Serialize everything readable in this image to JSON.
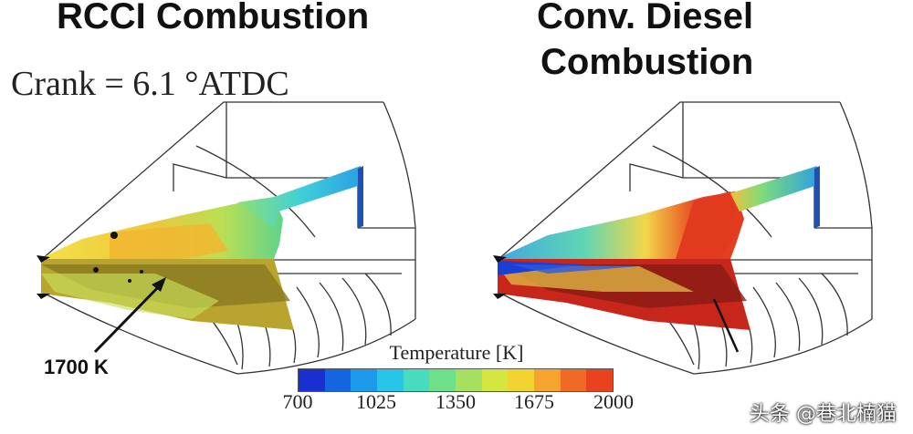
{
  "titles": {
    "left": "RCCI Combustion",
    "right_line1": "Conv. Diesel",
    "right_line2": "Combustion"
  },
  "crank_label": "Crank = 6.1 °ATDC",
  "annotation": "1700 K",
  "colorbar": {
    "title": "Temperature [K]",
    "ticks": [
      "700",
      "1025",
      "1350",
      "1675",
      "2000"
    ],
    "colors": [
      "#1a2fcf",
      "#1565e0",
      "#1a9ae8",
      "#27c6e8",
      "#45dcc0",
      "#6fe08a",
      "#a5e060",
      "#d6e640",
      "#f2d430",
      "#f6a42e",
      "#f06a26",
      "#e8421f"
    ]
  },
  "watermark": "头条 @巷北楠猫"
}
